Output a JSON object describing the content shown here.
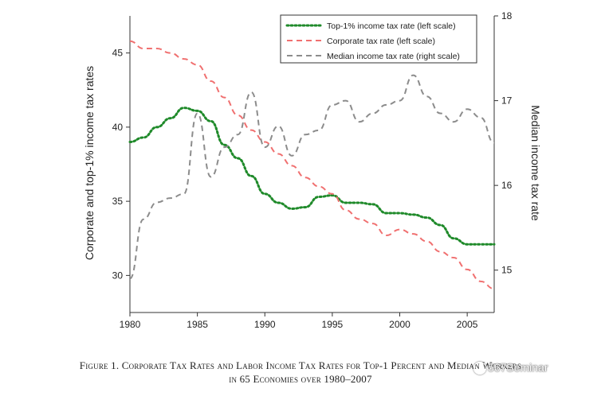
{
  "chart_data": {
    "type": "line",
    "title": "",
    "xlabel": "",
    "ylabel_left": "Corporate and top-1% income tax rates",
    "ylabel_right": "Median income tax rate",
    "xlim": [
      1980,
      2007
    ],
    "ylim_left": [
      27.5,
      47.5
    ],
    "ylim_right": [
      14.5,
      18
    ],
    "x_ticks": [
      1980,
      1985,
      1990,
      1995,
      2000,
      2005
    ],
    "y_ticks_left": [
      30,
      35,
      40,
      45
    ],
    "y_ticks_right": [
      15,
      16,
      17,
      18
    ],
    "legend_position": "top-right",
    "series": [
      {
        "name": "Top-1% income tax rate (left scale)",
        "axis": "left",
        "color": "#1f8a2a",
        "style": "dotted",
        "x": [
          1980,
          1981,
          1982,
          1983,
          1984,
          1985,
          1986,
          1987,
          1988,
          1989,
          1990,
          1991,
          1992,
          1993,
          1994,
          1995,
          1996,
          1997,
          1998,
          1999,
          2000,
          2001,
          2002,
          2003,
          2004,
          2005,
          2006,
          2007
        ],
        "values": [
          39.0,
          39.3,
          40.0,
          40.6,
          41.3,
          41.1,
          40.4,
          38.8,
          37.9,
          36.7,
          35.5,
          34.9,
          34.5,
          34.6,
          35.3,
          35.4,
          34.9,
          34.9,
          34.8,
          34.2,
          34.2,
          34.1,
          33.9,
          33.4,
          32.5,
          32.1,
          32.1,
          32.1
        ]
      },
      {
        "name": "Corporate tax rate (left scale)",
        "axis": "left",
        "color": "#f07070",
        "style": "dashed",
        "x": [
          1980,
          1981,
          1982,
          1983,
          1984,
          1985,
          1986,
          1987,
          1988,
          1989,
          1990,
          1991,
          1992,
          1993,
          1994,
          1995,
          1996,
          1997,
          1998,
          1999,
          2000,
          2001,
          2002,
          2003,
          2004,
          2005,
          2006,
          2007
        ],
        "values": [
          45.8,
          45.3,
          45.3,
          45.0,
          44.6,
          44.2,
          43.1,
          42.0,
          40.8,
          39.8,
          39.0,
          38.2,
          37.4,
          36.6,
          36.0,
          35.5,
          34.4,
          33.8,
          33.5,
          32.7,
          33.1,
          32.8,
          32.3,
          31.6,
          31.2,
          30.4,
          29.6,
          29.1
        ]
      },
      {
        "name": "Median income tax rate (right scale)",
        "axis": "right",
        "color": "#8c8c8c",
        "style": "dashed",
        "x": [
          1980,
          1981,
          1982,
          1983,
          1984,
          1985,
          1986,
          1987,
          1988,
          1989,
          1990,
          1991,
          1992,
          1993,
          1994,
          1995,
          1996,
          1997,
          1998,
          1999,
          2000,
          2001,
          2002,
          2003,
          2004,
          2005,
          2006,
          2007
        ],
        "values": [
          14.9,
          15.6,
          15.8,
          15.85,
          15.9,
          16.85,
          16.1,
          16.45,
          16.6,
          17.1,
          16.45,
          16.7,
          16.35,
          16.6,
          16.65,
          16.95,
          17.0,
          16.75,
          16.85,
          16.95,
          17.0,
          17.3,
          17.05,
          16.85,
          16.75,
          16.9,
          16.8,
          16.5
        ]
      }
    ]
  },
  "caption": {
    "line1": "Figure 1. Corporate Tax Rates and Labor Income Tax Rates for Top-1 Percent and Median Workers",
    "line2": "in 65 Economies over 1980–2007"
  },
  "watermark": "567Seminar"
}
